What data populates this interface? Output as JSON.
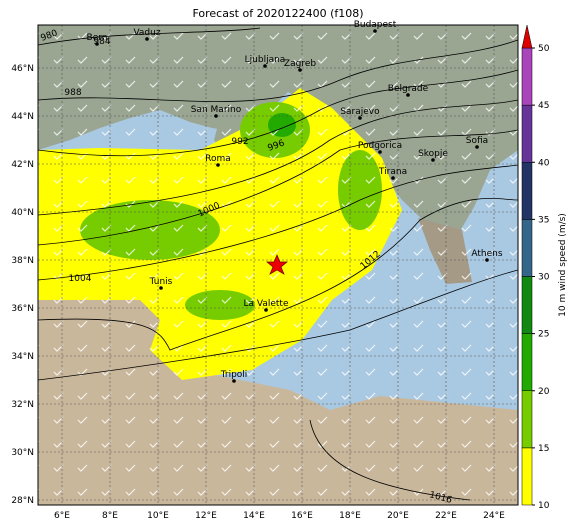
{
  "title": "Forecast of 2020122400 (f108)",
  "map": {
    "lat_labels": [
      "28°N",
      "30°N",
      "32°N",
      "34°N",
      "36°N",
      "38°N",
      "40°N",
      "42°N",
      "44°N",
      "46°N"
    ],
    "lon_labels": [
      "6°E",
      "8°E",
      "10°E",
      "12°E",
      "14°E",
      "16°E",
      "18°E",
      "20°E",
      "22°E",
      "24°E"
    ],
    "cities": [
      "Bern",
      "Vaduz",
      "Budapest",
      "Ljubljana",
      "Zagreb",
      "San Marino",
      "Belgrade",
      "Sarajevo",
      "Roma",
      "Podgorica",
      "Sofia",
      "Skopje",
      "Tirana",
      "Athens",
      "Tunis",
      "La Valette",
      "Tripoli"
    ],
    "isobar_labels": [
      "980",
      "984",
      "988",
      "992",
      "996",
      "1000",
      "1004",
      "1012",
      "1016"
    ]
  },
  "colorbar": {
    "ticks": [
      10,
      15,
      20,
      25,
      30,
      35,
      40,
      45,
      50
    ],
    "label": "10 m wind speed (m/s)"
  }
}
